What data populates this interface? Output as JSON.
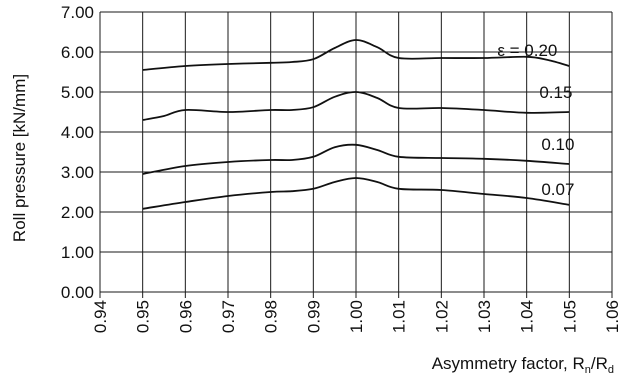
{
  "chart_data": {
    "type": "line",
    "xlabel": "Asymmetry factor, R",
    "xlabel_sub1": "n",
    "xlabel_mid": "/R",
    "xlabel_sub2": "d",
    "ylabel": "Roll pressure [kN/mm]",
    "xlim": [
      0.94,
      1.06
    ],
    "ylim": [
      0.0,
      7.0
    ],
    "x_ticks": [
      "0.94",
      "0.95",
      "0.96",
      "0.97",
      "0.98",
      "0.99",
      "1.00",
      "1.01",
      "1.02",
      "1.03",
      "1.04",
      "1.05",
      "1.06"
    ],
    "y_ticks": [
      "0.00",
      "1.00",
      "2.00",
      "3.00",
      "4.00",
      "5.00",
      "6.00",
      "7.00"
    ],
    "grid": true,
    "series": [
      {
        "name": "ε = 0.20",
        "x": [
          0.95,
          0.96,
          0.97,
          0.98,
          0.985,
          0.99,
          0.995,
          1.0,
          1.005,
          1.01,
          1.02,
          1.03,
          1.04,
          1.045,
          1.05
        ],
        "y": [
          5.55,
          5.65,
          5.7,
          5.73,
          5.75,
          5.82,
          6.1,
          6.3,
          6.12,
          5.85,
          5.85,
          5.85,
          5.88,
          5.8,
          5.65
        ]
      },
      {
        "name": "0.15",
        "x": [
          0.95,
          0.955,
          0.96,
          0.97,
          0.98,
          0.985,
          0.99,
          0.995,
          1.0,
          1.005,
          1.01,
          1.02,
          1.03,
          1.04,
          1.05
        ],
        "y": [
          4.3,
          4.4,
          4.55,
          4.5,
          4.55,
          4.55,
          4.62,
          4.88,
          5.0,
          4.85,
          4.6,
          4.6,
          4.55,
          4.48,
          4.5
        ]
      },
      {
        "name": "0.10",
        "x": [
          0.95,
          0.96,
          0.97,
          0.98,
          0.985,
          0.99,
          0.995,
          1.0,
          1.005,
          1.01,
          1.02,
          1.03,
          1.04,
          1.05
        ],
        "y": [
          2.95,
          3.15,
          3.25,
          3.3,
          3.3,
          3.38,
          3.62,
          3.68,
          3.55,
          3.38,
          3.35,
          3.33,
          3.28,
          3.2
        ]
      },
      {
        "name": "0.07",
        "x": [
          0.95,
          0.96,
          0.97,
          0.98,
          0.985,
          0.99,
          0.995,
          1.0,
          1.005,
          1.01,
          1.02,
          1.03,
          1.04,
          1.05
        ],
        "y": [
          2.08,
          2.25,
          2.4,
          2.5,
          2.52,
          2.58,
          2.75,
          2.85,
          2.75,
          2.58,
          2.55,
          2.45,
          2.35,
          2.18
        ]
      }
    ]
  }
}
